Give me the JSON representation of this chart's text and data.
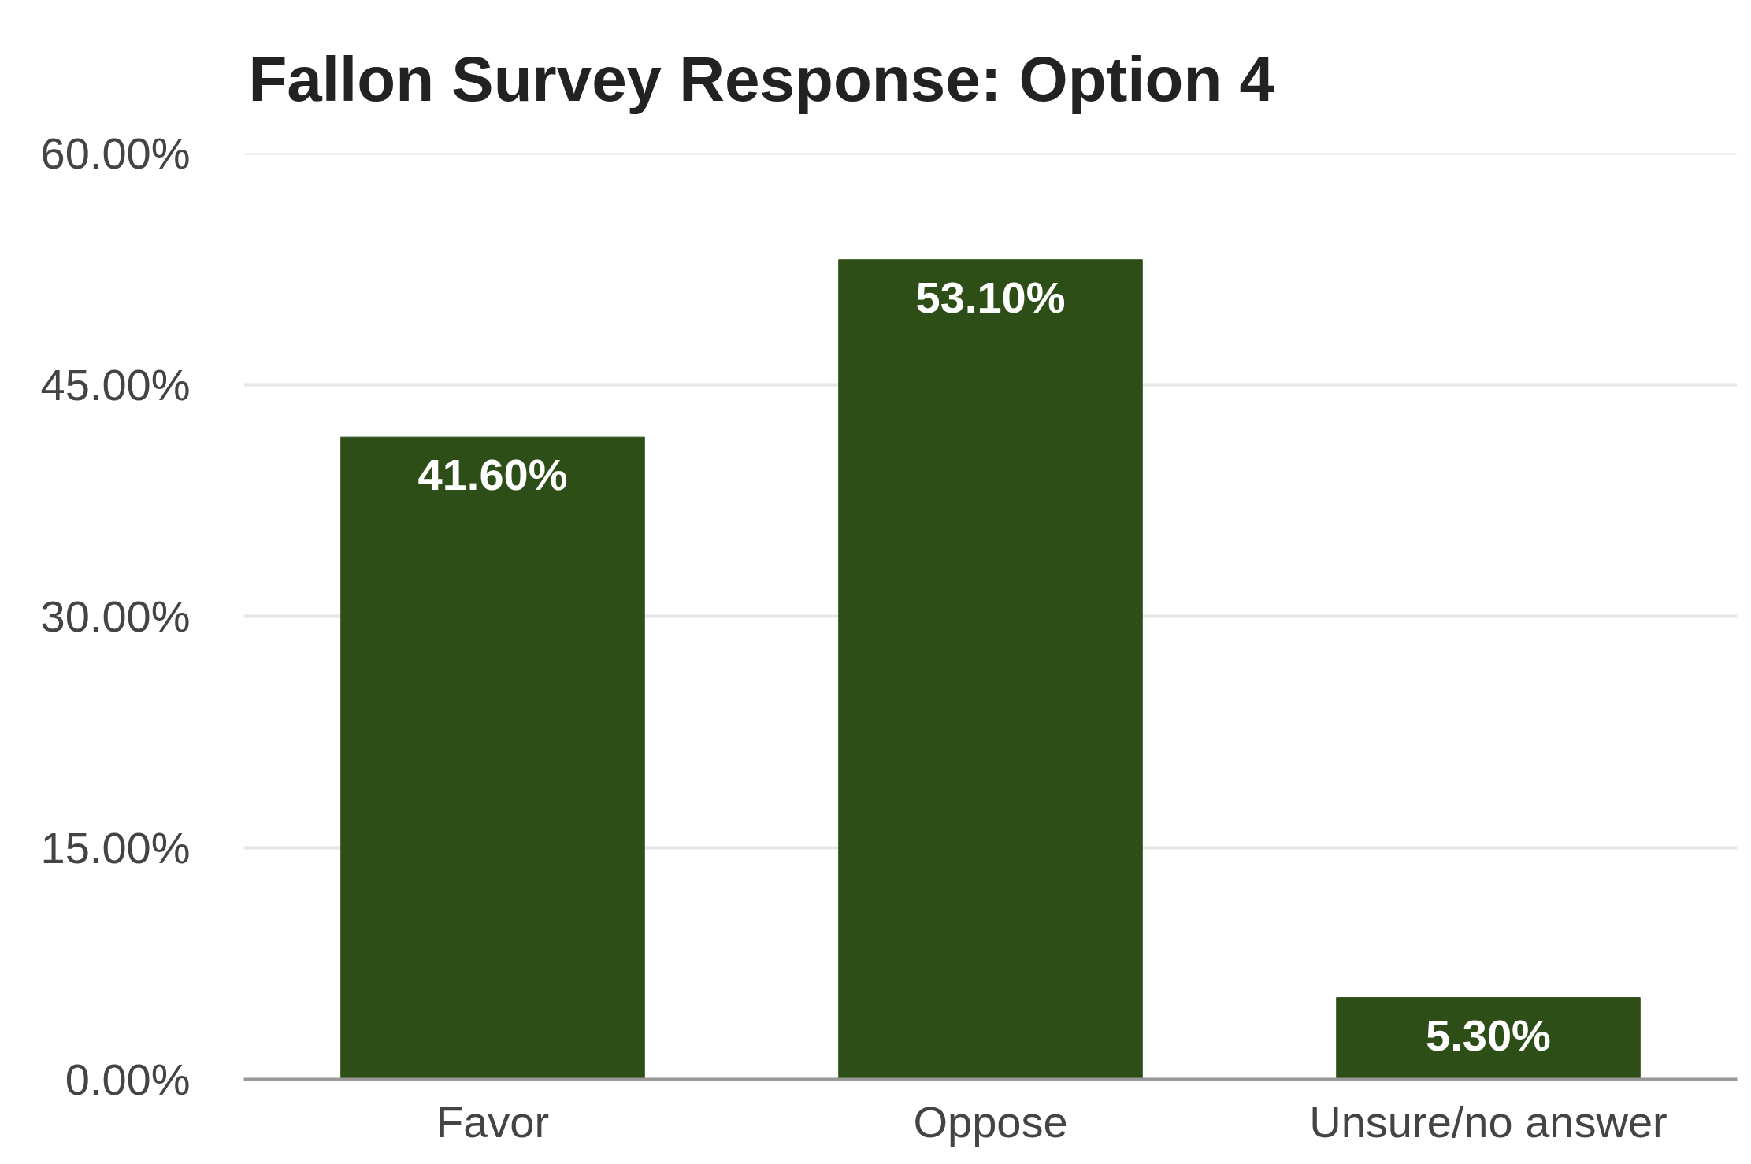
{
  "chart_data": {
    "type": "bar",
    "title": "Fallon Survey Response: Option 4",
    "categories": [
      "Favor",
      "Oppose",
      "Unsure/no answer"
    ],
    "values": [
      41.6,
      53.1,
      5.3
    ],
    "value_labels": [
      "41.60%",
      "53.10%",
      "5.30%"
    ],
    "color": "#2d4e17",
    "ylim": [
      0,
      60
    ],
    "yticks": [
      {
        "value": 0,
        "label": "0.00%"
      },
      {
        "value": 15,
        "label": "15.00%"
      },
      {
        "value": 30,
        "label": "30.00%"
      },
      {
        "value": 45,
        "label": "45.00%"
      },
      {
        "value": 60,
        "label": "60.00%"
      }
    ],
    "grid": "y"
  }
}
